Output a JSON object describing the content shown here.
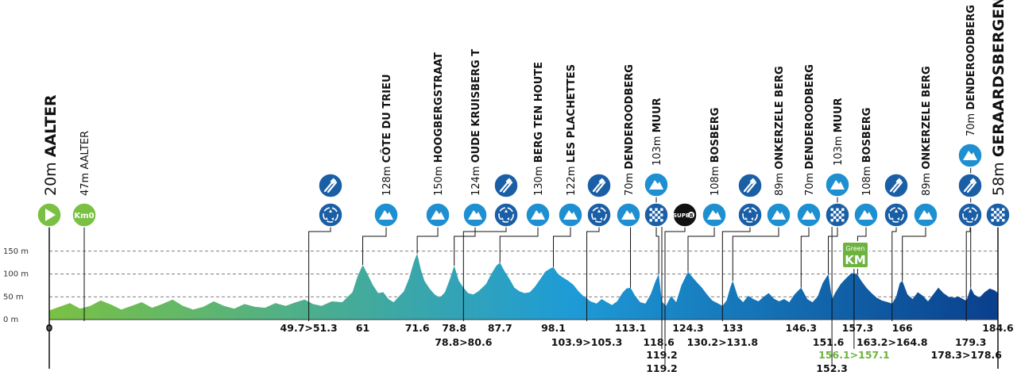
{
  "chart_data": {
    "type": "area",
    "title": "",
    "xlabel": "",
    "ylabel": "",
    "xlim": [
      0,
      184.6
    ],
    "ylim": [
      0,
      150
    ],
    "y_ticks": [
      {
        "value": 0,
        "label": "0 m"
      },
      {
        "value": 50,
        "label": "50 m"
      },
      {
        "value": 100,
        "label": "100 m"
      },
      {
        "value": 150,
        "label": "150 m"
      }
    ],
    "grid": "dashed at 50, 100, 150 m",
    "gradient_colors": [
      "#7ac143",
      "#1e9bd7",
      "#0a3f8c"
    ],
    "start": {
      "altitude": "20m",
      "name": "AALTER",
      "icon": "start-flag-icon",
      "color": "#7ac143"
    },
    "km0": {
      "altitude": "47m",
      "name": "AALTER",
      "badge": "Km0",
      "km": "0",
      "color": "#7ac143"
    },
    "finish": {
      "altitude": "58m",
      "name": "GERAARDSBERGEN",
      "km": "184.6",
      "icon": "finish-flag-icon"
    },
    "climbs": [
      {
        "name": "CÔTE DU TRIEU",
        "altitude": "128m",
        "km": 61,
        "peak_alt": 120
      },
      {
        "name": "HOOGBERGSTRAAT",
        "altitude": "150m",
        "km": 71.6,
        "peak_alt": 145
      },
      {
        "name": "OUDE KRUISBERG T",
        "altitude": "124m",
        "km": 78.8,
        "peak_alt": 118
      },
      {
        "name": "BERG TEN HOUTE",
        "altitude": "130m",
        "km": 87.7,
        "peak_alt": 125
      },
      {
        "name": "LES PLACHETTES",
        "altitude": "122m",
        "km": 98.1,
        "peak_alt": 115
      },
      {
        "name": "DENDEROODBERG",
        "altitude": "70m",
        "km": 113.1,
        "peak_alt": 70
      },
      {
        "name": "MUUR",
        "altitude": "103m",
        "km": 118.6,
        "peak_alt": 100
      },
      {
        "name": "BOSBERG",
        "altitude": "108m",
        "km": 124.3,
        "peak_alt": 105
      },
      {
        "name": "ONKERZELE BERG",
        "altitude": "89m",
        "km": 133,
        "peak_alt": 85
      },
      {
        "name": "DENDEROODBERG",
        "altitude": "70m",
        "km": 146.3,
        "peak_alt": 70
      },
      {
        "name": "MUUR",
        "altitude": "103m",
        "km": 151.6,
        "peak_alt": 100
      },
      {
        "name": "BOSBERG",
        "altitude": "108m",
        "km": 157.3,
        "peak_alt": 100
      },
      {
        "name": "ONKERZELE BERG",
        "altitude": "89m",
        "km": 166,
        "peak_alt": 85
      },
      {
        "name": "DENDEROODBERG",
        "altitude": "70m",
        "km": 179.3,
        "peak_alt": 70
      }
    ],
    "km_labels": [
      {
        "text": "0",
        "km": 0,
        "row": 0
      },
      {
        "text": "49.7>51.3",
        "km": 50.5,
        "row": 0
      },
      {
        "text": "61",
        "km": 61,
        "row": 0
      },
      {
        "text": "71.6",
        "km": 71.6,
        "row": 0
      },
      {
        "text": "78.8",
        "km": 78.8,
        "row": 0
      },
      {
        "text": "78.8>80.6",
        "km": 80.6,
        "row": 1
      },
      {
        "text": "87.7",
        "km": 87.7,
        "row": 0
      },
      {
        "text": "98.1",
        "km": 98.1,
        "row": 0
      },
      {
        "text": "103.9>105.3",
        "km": 104.6,
        "row": 1
      },
      {
        "text": "113.1",
        "km": 113.1,
        "row": 0
      },
      {
        "text": "118.6",
        "km": 118.6,
        "row": 1
      },
      {
        "text": "119.2",
        "km": 119.2,
        "row": 2
      },
      {
        "text": "119.2",
        "km": 119.2,
        "row": 3
      },
      {
        "text": "124.3",
        "km": 124.3,
        "row": 0
      },
      {
        "text": "130.2>131.8",
        "km": 131,
        "row": 1
      },
      {
        "text": "133",
        "km": 133,
        "row": 0
      },
      {
        "text": "146.3",
        "km": 146.3,
        "row": 0
      },
      {
        "text": "151.6",
        "km": 151.6,
        "row": 1
      },
      {
        "text": "156.1>157.1",
        "km": 156.6,
        "row": 2,
        "green": true
      },
      {
        "text": "152.3",
        "km": 152.3,
        "row": 3
      },
      {
        "text": "157.3",
        "km": 157.3,
        "row": 0
      },
      {
        "text": "163.2>164.8",
        "km": 164,
        "row": 1
      },
      {
        "text": "166",
        "km": 166,
        "row": 0
      },
      {
        "text": "184.6",
        "km": 184.6,
        "row": 0
      },
      {
        "text": "179.3",
        "km": 179.3,
        "row": 1
      },
      {
        "text": "178.3>178.6",
        "km": 178.45,
        "row": 2
      }
    ],
    "feed_zones": [
      50.5,
      80.6,
      104.6,
      131,
      164,
      178.45
    ],
    "waste_zones": [
      50.5,
      80.6,
      104.6,
      131,
      164,
      178.45
    ],
    "sprints": [
      {
        "type": "intermediate",
        "km": 119.2,
        "icon": "checkered-sprint-icon"
      },
      {
        "type": "super",
        "km": 119.2,
        "label": "SUPER",
        "sub": "8",
        "icon": "super8-sprint-icon"
      },
      {
        "type": "intermediate",
        "km": 152.3,
        "icon": "checkered-sprint-icon"
      },
      {
        "type": "green_km",
        "km": 156.6,
        "label1": "Green",
        "label2": "KM"
      }
    ],
    "profile": [
      [
        0,
        20
      ],
      [
        2,
        28
      ],
      [
        4,
        36
      ],
      [
        6,
        24
      ],
      [
        8,
        30
      ],
      [
        10,
        42
      ],
      [
        12,
        33
      ],
      [
        14,
        22
      ],
      [
        16,
        30
      ],
      [
        18,
        38
      ],
      [
        20,
        26
      ],
      [
        22,
        34
      ],
      [
        24,
        44
      ],
      [
        26,
        30
      ],
      [
        28,
        22
      ],
      [
        30,
        28
      ],
      [
        32,
        40
      ],
      [
        34,
        30
      ],
      [
        36,
        24
      ],
      [
        38,
        34
      ],
      [
        40,
        28
      ],
      [
        42,
        26
      ],
      [
        44,
        36
      ],
      [
        46,
        30
      ],
      [
        48,
        38
      ],
      [
        49.7,
        44
      ],
      [
        51.3,
        34
      ],
      [
        53,
        30
      ],
      [
        55,
        40
      ],
      [
        57,
        38
      ],
      [
        59,
        60
      ],
      [
        60,
        95
      ],
      [
        61,
        120
      ],
      [
        62,
        98
      ],
      [
        63,
        75
      ],
      [
        64,
        58
      ],
      [
        65,
        60
      ],
      [
        66,
        45
      ],
      [
        67,
        38
      ],
      [
        68,
        50
      ],
      [
        69,
        62
      ],
      [
        70,
        90
      ],
      [
        71,
        128
      ],
      [
        71.6,
        145
      ],
      [
        72.3,
        110
      ],
      [
        73,
        85
      ],
      [
        74,
        68
      ],
      [
        75,
        55
      ],
      [
        76,
        48
      ],
      [
        77,
        60
      ],
      [
        78,
        90
      ],
      [
        78.8,
        118
      ],
      [
        79.7,
        85
      ],
      [
        80.6,
        70
      ],
      [
        81.5,
        58
      ],
      [
        82.5,
        55
      ],
      [
        83.5,
        62
      ],
      [
        85,
        78
      ],
      [
        86,
        100
      ],
      [
        87,
        118
      ],
      [
        87.7,
        125
      ],
      [
        88.5,
        108
      ],
      [
        89.5,
        90
      ],
      [
        90.5,
        70
      ],
      [
        91.5,
        62
      ],
      [
        92.5,
        58
      ],
      [
        93.5,
        60
      ],
      [
        94.5,
        72
      ],
      [
        95.5,
        88
      ],
      [
        96.5,
        105
      ],
      [
        97.5,
        112
      ],
      [
        98.1,
        115
      ],
      [
        99,
        100
      ],
      [
        100,
        92
      ],
      [
        101,
        85
      ],
      [
        102,
        76
      ],
      [
        103,
        62
      ],
      [
        103.9,
        52
      ],
      [
        105.3,
        40
      ],
      [
        106.5,
        35
      ],
      [
        107.5,
        45
      ],
      [
        108.5,
        38
      ],
      [
        109.5,
        32
      ],
      [
        110.5,
        40
      ],
      [
        111.5,
        58
      ],
      [
        112.3,
        68
      ],
      [
        113.1,
        70
      ],
      [
        114,
        52
      ],
      [
        115,
        38
      ],
      [
        116,
        35
      ],
      [
        117,
        55
      ],
      [
        118,
        85
      ],
      [
        118.6,
        100
      ],
      [
        119.2,
        40
      ],
      [
        120,
        30
      ],
      [
        121,
        52
      ],
      [
        122,
        38
      ],
      [
        123,
        75
      ],
      [
        124.3,
        105
      ],
      [
        125,
        95
      ],
      [
        126,
        82
      ],
      [
        127,
        70
      ],
      [
        128,
        55
      ],
      [
        129,
        42
      ],
      [
        130.2,
        35
      ],
      [
        131,
        30
      ],
      [
        131.8,
        42
      ],
      [
        132.5,
        70
      ],
      [
        133,
        85
      ],
      [
        134,
        50
      ],
      [
        135,
        38
      ],
      [
        136,
        52
      ],
      [
        137,
        45
      ],
      [
        138,
        40
      ],
      [
        139,
        50
      ],
      [
        140,
        58
      ],
      [
        141,
        46
      ],
      [
        142,
        40
      ],
      [
        143,
        45
      ],
      [
        144,
        38
      ],
      [
        145,
        55
      ],
      [
        146.3,
        70
      ],
      [
        147.5,
        45
      ],
      [
        148.5,
        38
      ],
      [
        149.5,
        50
      ],
      [
        150.5,
        80
      ],
      [
        151.6,
        100
      ],
      [
        152.3,
        45
      ],
      [
        153,
        60
      ],
      [
        154,
        78
      ],
      [
        155,
        90
      ],
      [
        156.1,
        102
      ],
      [
        157.1,
        100
      ],
      [
        157.3,
        98
      ],
      [
        158,
        85
      ],
      [
        159,
        70
      ],
      [
        160,
        58
      ],
      [
        161,
        48
      ],
      [
        162,
        42
      ],
      [
        163.2,
        38
      ],
      [
        164,
        35
      ],
      [
        164.8,
        50
      ],
      [
        165.5,
        80
      ],
      [
        166,
        85
      ],
      [
        167,
        55
      ],
      [
        168,
        45
      ],
      [
        169,
        60
      ],
      [
        170,
        52
      ],
      [
        171,
        40
      ],
      [
        172,
        55
      ],
      [
        173,
        70
      ],
      [
        174,
        58
      ],
      [
        175,
        50
      ],
      [
        176,
        48
      ],
      [
        177,
        50
      ],
      [
        178.3,
        42
      ],
      [
        178.6,
        45
      ],
      [
        179.3,
        70
      ],
      [
        180,
        55
      ],
      [
        181,
        48
      ],
      [
        182,
        60
      ],
      [
        183,
        68
      ],
      [
        184,
        64
      ],
      [
        184.6,
        58
      ]
    ]
  }
}
